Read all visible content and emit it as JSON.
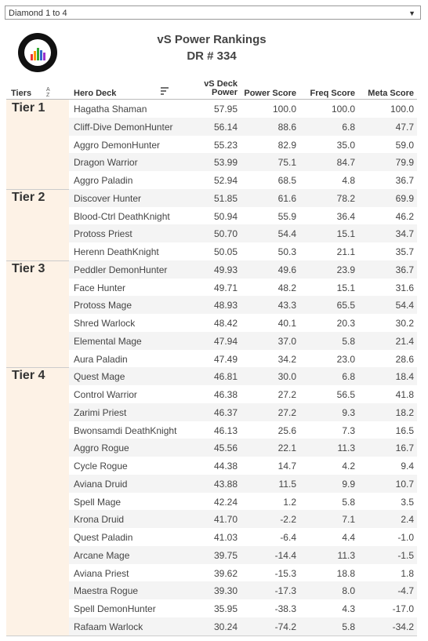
{
  "dropdown": {
    "label": "Diamond 1 to 4"
  },
  "header": {
    "title": "vS Power Rankings",
    "subtitle": "DR # 334"
  },
  "table": {
    "columns": [
      "Tiers",
      "Hero Deck",
      "vS Deck Power",
      "Power Score",
      "Freq Score",
      "Meta Score"
    ],
    "tiers": [
      {
        "name": "Tier 1",
        "rows": [
          [
            "Hagatha Shaman",
            "57.95",
            "100.0",
            "100.0",
            "100.0"
          ],
          [
            "Cliff-Dive DemonHunter",
            "56.14",
            "88.6",
            "6.8",
            "47.7"
          ],
          [
            "Aggro DemonHunter",
            "55.23",
            "82.9",
            "35.0",
            "59.0"
          ],
          [
            "Dragon Warrior",
            "53.99",
            "75.1",
            "84.7",
            "79.9"
          ],
          [
            "Aggro Paladin",
            "52.94",
            "68.5",
            "4.8",
            "36.7"
          ]
        ]
      },
      {
        "name": "Tier 2",
        "rows": [
          [
            "Discover Hunter",
            "51.85",
            "61.6",
            "78.2",
            "69.9"
          ],
          [
            "Blood-Ctrl DeathKnight",
            "50.94",
            "55.9",
            "36.4",
            "46.2"
          ],
          [
            "Protoss Priest",
            "50.70",
            "54.4",
            "15.1",
            "34.7"
          ],
          [
            "Herenn DeathKnight",
            "50.05",
            "50.3",
            "21.1",
            "35.7"
          ]
        ]
      },
      {
        "name": "Tier 3",
        "rows": [
          [
            "Peddler DemonHunter",
            "49.93",
            "49.6",
            "23.9",
            "36.7"
          ],
          [
            "Face Hunter",
            "49.71",
            "48.2",
            "15.1",
            "31.6"
          ],
          [
            "Protoss Mage",
            "48.93",
            "43.3",
            "65.5",
            "54.4"
          ],
          [
            "Shred Warlock",
            "48.42",
            "40.1",
            "20.3",
            "30.2"
          ],
          [
            "Elemental Mage",
            "47.94",
            "37.0",
            "5.8",
            "21.4"
          ],
          [
            "Aura Paladin",
            "47.49",
            "34.2",
            "23.0",
            "28.6"
          ]
        ]
      },
      {
        "name": "Tier 4",
        "rows": [
          [
            "Quest Mage",
            "46.81",
            "30.0",
            "6.8",
            "18.4"
          ],
          [
            "Control Warrior",
            "46.38",
            "27.2",
            "56.5",
            "41.8"
          ],
          [
            "Zarimi Priest",
            "46.37",
            "27.2",
            "9.3",
            "18.2"
          ],
          [
            "Bwonsamdi DeathKnight",
            "46.13",
            "25.6",
            "7.3",
            "16.5"
          ],
          [
            "Aggro Rogue",
            "45.56",
            "22.1",
            "11.3",
            "16.7"
          ],
          [
            "Cycle Rogue",
            "44.38",
            "14.7",
            "4.2",
            "9.4"
          ],
          [
            "Aviana Druid",
            "43.88",
            "11.5",
            "9.9",
            "10.7"
          ],
          [
            "Spell Mage",
            "42.24",
            "1.2",
            "5.8",
            "3.5"
          ],
          [
            "Krona Druid",
            "41.70",
            "-2.2",
            "7.1",
            "2.4"
          ],
          [
            "Quest Paladin",
            "41.03",
            "-6.4",
            "4.4",
            "-1.0"
          ],
          [
            "Arcane Mage",
            "39.75",
            "-14.4",
            "11.3",
            "-1.5"
          ],
          [
            "Aviana Priest",
            "39.62",
            "-15.3",
            "18.8",
            "1.8"
          ],
          [
            "Maestra Rogue",
            "39.30",
            "-17.3",
            "8.0",
            "-4.7"
          ],
          [
            "Spell DemonHunter",
            "35.95",
            "-38.3",
            "4.3",
            "-17.0"
          ],
          [
            "Rafaam Warlock",
            "30.24",
            "-74.2",
            "5.8",
            "-34.2"
          ]
        ]
      }
    ]
  }
}
